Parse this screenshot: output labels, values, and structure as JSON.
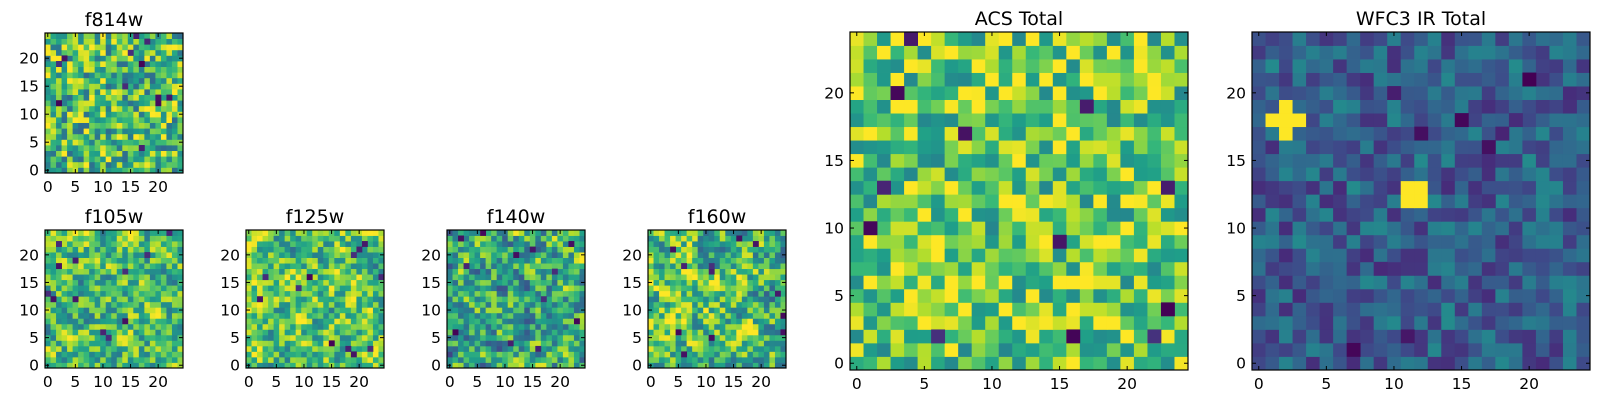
{
  "figure": {
    "description_free": true
  },
  "chart_data": [
    {
      "type": "heatmap",
      "title": "f814w",
      "grid": [
        25,
        25
      ],
      "xticks": [
        "0",
        "5",
        "10",
        "15",
        "20"
      ],
      "yticks": [
        "0",
        "5",
        "10",
        "15",
        "20"
      ],
      "xlim": [
        -0.5,
        24.5
      ],
      "ylim": [
        -0.5,
        24.5
      ],
      "colormap": "viridis",
      "seed": 11,
      "mean": 0.68,
      "spread": 0.34,
      "smooth": 0,
      "hot_spots": []
    },
    {
      "type": "heatmap",
      "title": "f105w",
      "grid": [
        25,
        25
      ],
      "xticks": [
        "0",
        "5",
        "10",
        "15",
        "20"
      ],
      "yticks": [
        "0",
        "5",
        "10",
        "15",
        "20"
      ],
      "xlim": [
        -0.5,
        24.5
      ],
      "ylim": [
        -0.5,
        24.5
      ],
      "colormap": "viridis",
      "seed": 23,
      "mean": 0.7,
      "spread": 0.5,
      "smooth": 1,
      "hot_spots": []
    },
    {
      "type": "heatmap",
      "title": "f125w",
      "grid": [
        25,
        25
      ],
      "xticks": [
        "0",
        "5",
        "10",
        "15",
        "20"
      ],
      "yticks": [
        "0",
        "5",
        "10",
        "15",
        "20"
      ],
      "xlim": [
        -0.5,
        24.5
      ],
      "ylim": [
        -0.5,
        24.5
      ],
      "colormap": "viridis",
      "seed": 37,
      "mean": 0.72,
      "spread": 0.5,
      "smooth": 1,
      "hot_spots": []
    },
    {
      "type": "heatmap",
      "title": "f140w",
      "grid": [
        25,
        25
      ],
      "xticks": [
        "0",
        "5",
        "10",
        "15",
        "20"
      ],
      "yticks": [
        "0",
        "5",
        "10",
        "15",
        "20"
      ],
      "xlim": [
        -0.5,
        24.5
      ],
      "ylim": [
        -0.5,
        24.5
      ],
      "colormap": "viridis",
      "seed": 41,
      "mean": 0.6,
      "spread": 0.55,
      "smooth": 1,
      "hot_spots": []
    },
    {
      "type": "heatmap",
      "title": "f160w",
      "grid": [
        25,
        25
      ],
      "xticks": [
        "0",
        "5",
        "10",
        "15",
        "20"
      ],
      "yticks": [
        "0",
        "5",
        "10",
        "15",
        "20"
      ],
      "xlim": [
        -0.5,
        24.5
      ],
      "ylim": [
        -0.5,
        24.5
      ],
      "colormap": "viridis",
      "seed": 53,
      "mean": 0.7,
      "spread": 0.55,
      "smooth": 1,
      "hot_spots": []
    },
    {
      "type": "heatmap",
      "title": "ACS Total",
      "grid": [
        25,
        25
      ],
      "xticks": [
        "0",
        "5",
        "10",
        "15",
        "20"
      ],
      "yticks": [
        "0",
        "5",
        "10",
        "15",
        "20"
      ],
      "xlim": [
        -0.5,
        24.5
      ],
      "ylim": [
        -0.5,
        24.5
      ],
      "colormap": "viridis",
      "seed": 67,
      "mean": 0.76,
      "spread": 0.3,
      "smooth": 0,
      "hot_spots": []
    },
    {
      "type": "heatmap",
      "title": "WFC3 IR Total",
      "grid": [
        25,
        25
      ],
      "xticks": [
        "0",
        "5",
        "10",
        "15",
        "20"
      ],
      "yticks": [
        "0",
        "5",
        "10",
        "15",
        "20"
      ],
      "xlim": [
        -0.5,
        24.5
      ],
      "ylim": [
        -0.5,
        24.5
      ],
      "colormap": "viridis",
      "seed": 79,
      "mean": 0.3,
      "spread": 0.18,
      "smooth": 0,
      "hot_spots": [
        [
          2,
          19
        ],
        [
          1,
          18
        ],
        [
          2,
          18
        ],
        [
          3,
          18
        ],
        [
          2,
          17
        ],
        [
          11,
          13
        ],
        [
          12,
          13
        ],
        [
          11,
          12
        ],
        [
          12,
          12
        ]
      ]
    }
  ]
}
